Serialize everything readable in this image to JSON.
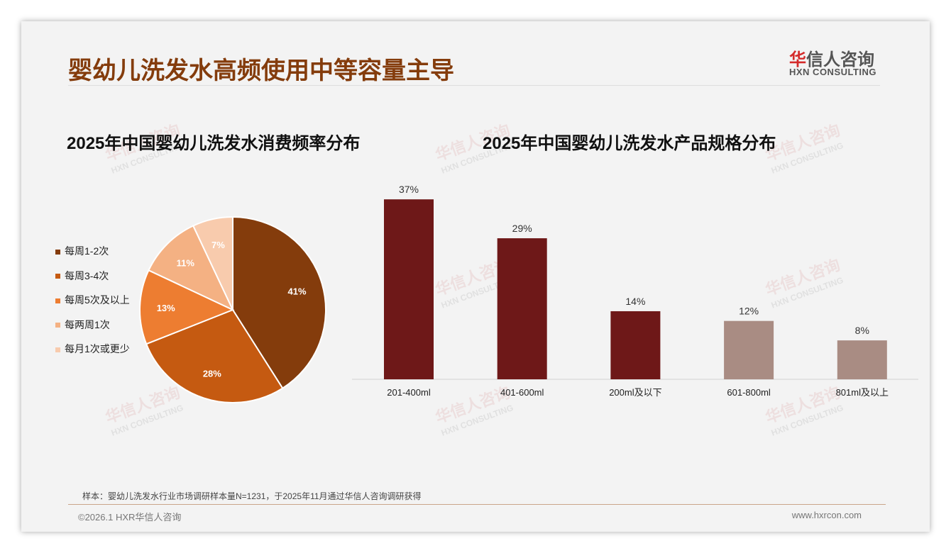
{
  "header": {
    "title": "婴幼儿洗发水高频使用中等容量主导",
    "logo_cn_first": "华",
    "logo_cn_rest": "信人咨询",
    "logo_en": "HXN CONSULTING"
  },
  "watermark": {
    "cn": "华信人咨询",
    "en": "HXN CONSULTING"
  },
  "footer": {
    "note": "样本：婴幼儿洗发水行业市场调研样本量N=1231，于2025年11月通过华信人咨询调研获得",
    "copyright": "©2026.1 HXR华信人咨询",
    "url": "www.hxrcon.com"
  },
  "chart_data": [
    {
      "type": "pie",
      "title": "2025年中国婴幼儿洗发水消费频率分布",
      "labels": [
        "每周1-2次",
        "每周3-4次",
        "每周5次及以上",
        "每两周1次",
        "每月1次或更少"
      ],
      "values": [
        41,
        28,
        13,
        11,
        7
      ],
      "value_labels": [
        "41%",
        "28%",
        "13%",
        "11%",
        "7%"
      ],
      "colors": [
        "#843C0C",
        "#C55A11",
        "#ED7D31",
        "#F4B183",
        "#F8CBAD"
      ],
      "legend": "left"
    },
    {
      "type": "bar",
      "title": "2025年中国婴幼儿洗发水产品规格分布",
      "categories": [
        "201-400ml",
        "401-600ml",
        "200ml及以下",
        "601-800ml",
        "801ml及以上"
      ],
      "values": [
        37,
        29,
        14,
        12,
        8
      ],
      "value_labels": [
        "37%",
        "29%",
        "14%",
        "12%",
        "8%"
      ],
      "colors": [
        "#6E1818",
        "#6E1818",
        "#6E1818",
        "#A98C83",
        "#A98C83"
      ],
      "ylim": [
        0,
        40
      ]
    }
  ]
}
